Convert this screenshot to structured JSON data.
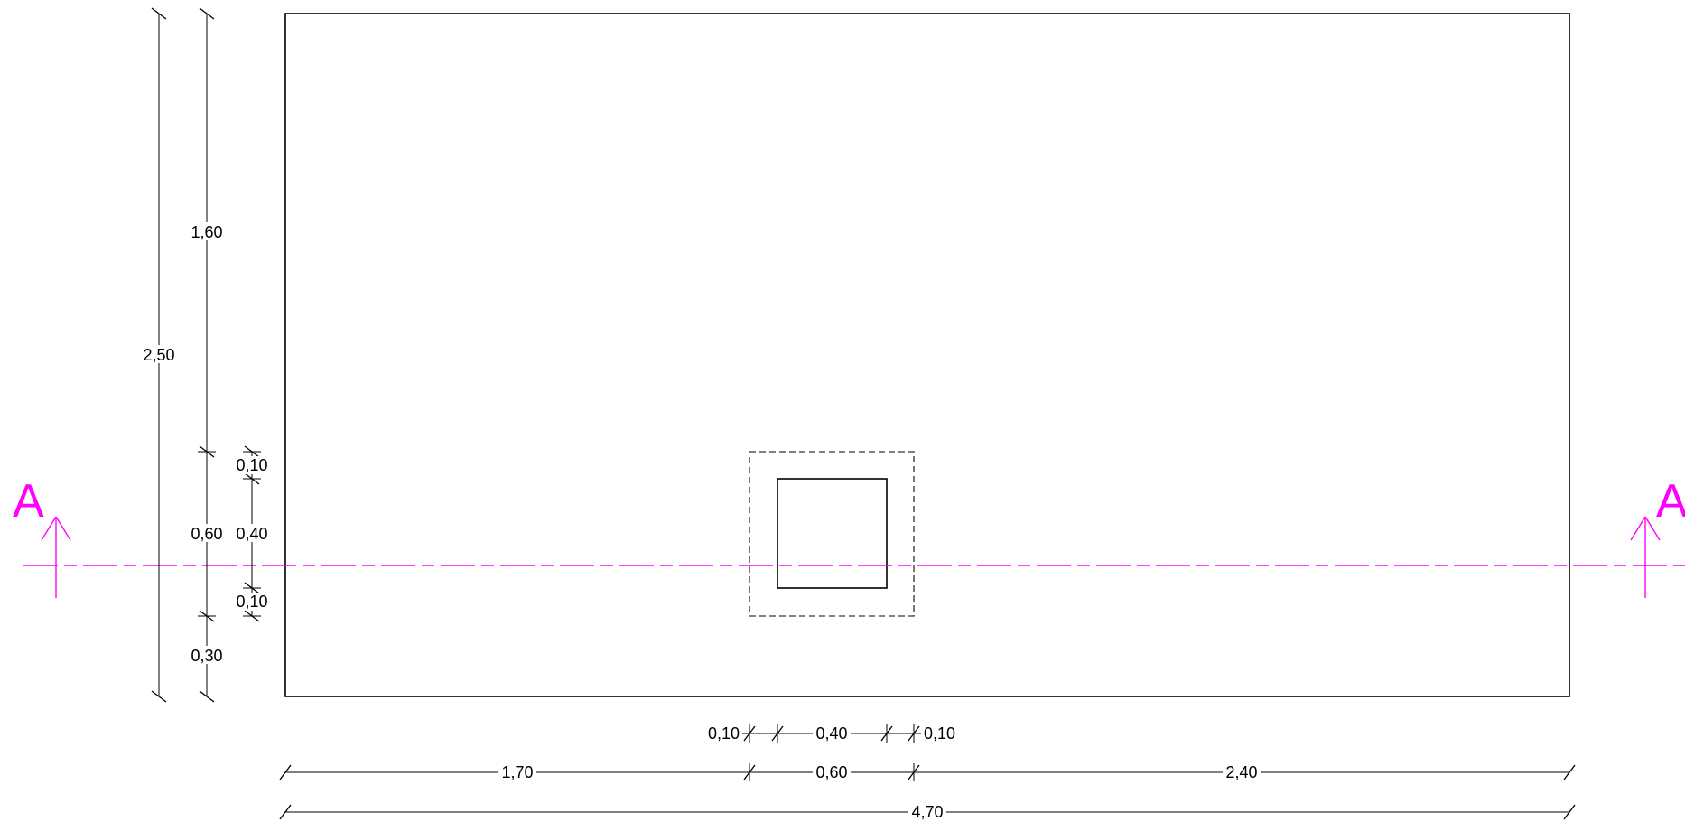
{
  "drawing": {
    "colors": {
      "line": "#000000",
      "hidden_line": "#555555",
      "section_line": "#ff00ff",
      "background": "#ffffff"
    },
    "section": {
      "label_left": "A",
      "label_right": "A"
    },
    "dimensions": {
      "vertical_total": "2,50",
      "vertical_top": "1,60",
      "vertical_middle": "0,60",
      "vertical_bottom": "0,30",
      "vertical_inner_top": "0,10",
      "vertical_inner_middle": "0,40",
      "vertical_inner_bottom": "0,10",
      "horizontal_inner_left": "0,10",
      "horizontal_inner_middle": "0,40",
      "horizontal_inner_right": "0,10",
      "horizontal_left": "1,70",
      "horizontal_middle": "0,60",
      "horizontal_right": "2,40",
      "horizontal_total": "4,70"
    }
  }
}
